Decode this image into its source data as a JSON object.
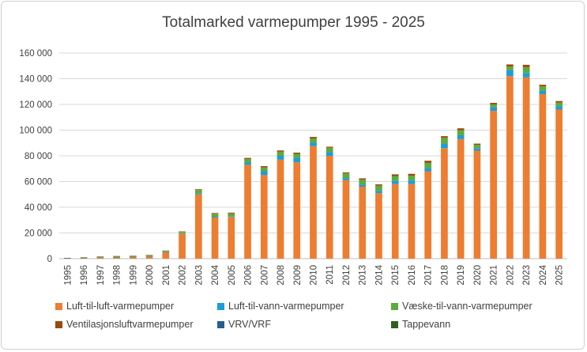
{
  "chart_data": {
    "type": "bar",
    "stacked": true,
    "title": "Totalmarked varmepumper 1995 - 2025",
    "xlabel": "",
    "ylabel": "",
    "ylim": [
      0,
      160000
    ],
    "yticks": [
      0,
      20000,
      40000,
      60000,
      80000,
      100000,
      120000,
      140000,
      160000
    ],
    "ytick_labels": [
      "0",
      "20 000",
      "40 000",
      "60 000",
      "80 000",
      "100 000",
      "120 000",
      "140 000",
      "160 000"
    ],
    "grid": true,
    "legend_position": "bottom",
    "categories": [
      "1995",
      "1996",
      "1997",
      "1998",
      "1999",
      "2000",
      "2001",
      "2002",
      "2003",
      "2004",
      "2005",
      "2006",
      "2007",
      "2008",
      "2009",
      "2010",
      "2011",
      "2012",
      "2013",
      "2014",
      "2015",
      "2016",
      "2017",
      "2018",
      "2019",
      "2020",
      "2021",
      "2022",
      "2023",
      "2024",
      "2025"
    ],
    "series": [
      {
        "name": "Luft-til-luft-varmepumper",
        "color": "#ED7D31",
        "values": [
          300,
          600,
          1000,
          1200,
          1400,
          1800,
          4800,
          19500,
          50000,
          32000,
          32500,
          73000,
          65000,
          77000,
          75000,
          87500,
          80000,
          61000,
          56000,
          51000,
          58000,
          58000,
          68000,
          86000,
          93000,
          84000,
          115000,
          142000,
          141000,
          128000,
          116000
        ]
      },
      {
        "name": "Luft-til-vann-varmepumper",
        "color": "#1E9CD7",
        "values": [
          20,
          30,
          40,
          50,
          60,
          80,
          200,
          300,
          700,
          600,
          500,
          1800,
          3000,
          3000,
          3500,
          2700,
          2800,
          1500,
          1600,
          1800,
          2500,
          2800,
          2500,
          3500,
          3000,
          2000,
          3000,
          4500,
          3500,
          2500,
          2500
        ]
      },
      {
        "name": "Væske-til-vann-varmepumper",
        "color": "#5DAB3C",
        "values": [
          200,
          300,
          500,
          600,
          600,
          800,
          1000,
          1000,
          2800,
          2400,
          2200,
          2800,
          3000,
          3200,
          3000,
          3300,
          3500,
          3800,
          4000,
          4000,
          3800,
          3800,
          4000,
          4500,
          4000,
          2500,
          2000,
          3000,
          4500,
          3500,
          3000
        ]
      },
      {
        "name": "Ventilasjonsluftvarmepumper",
        "color": "#9E480E",
        "values": [
          100,
          100,
          150,
          200,
          200,
          200,
          300,
          400,
          500,
          500,
          600,
          800,
          1000,
          1000,
          1000,
          1200,
          800,
          800,
          900,
          1000,
          1300,
          1400,
          1700,
          1300,
          1400,
          1000,
          1200,
          1600,
          1800,
          1300,
          1100
        ]
      },
      {
        "name": "VRV/VRF",
        "color": "#255E91",
        "values": [
          0,
          0,
          0,
          0,
          0,
          0,
          0,
          0,
          0,
          0,
          0,
          0,
          0,
          0,
          0,
          0,
          0,
          0,
          0,
          0,
          0,
          0,
          0,
          0,
          0,
          0,
          0,
          0,
          0,
          0,
          0
        ]
      },
      {
        "name": "Tappevann",
        "color": "#2E5E20",
        "values": [
          0,
          0,
          0,
          0,
          0,
          0,
          0,
          0,
          0,
          0,
          0,
          0,
          0,
          0,
          0,
          0,
          0,
          0,
          0,
          0,
          0,
          0,
          0,
          0,
          0,
          0,
          0,
          0,
          0,
          0,
          0
        ]
      }
    ]
  }
}
